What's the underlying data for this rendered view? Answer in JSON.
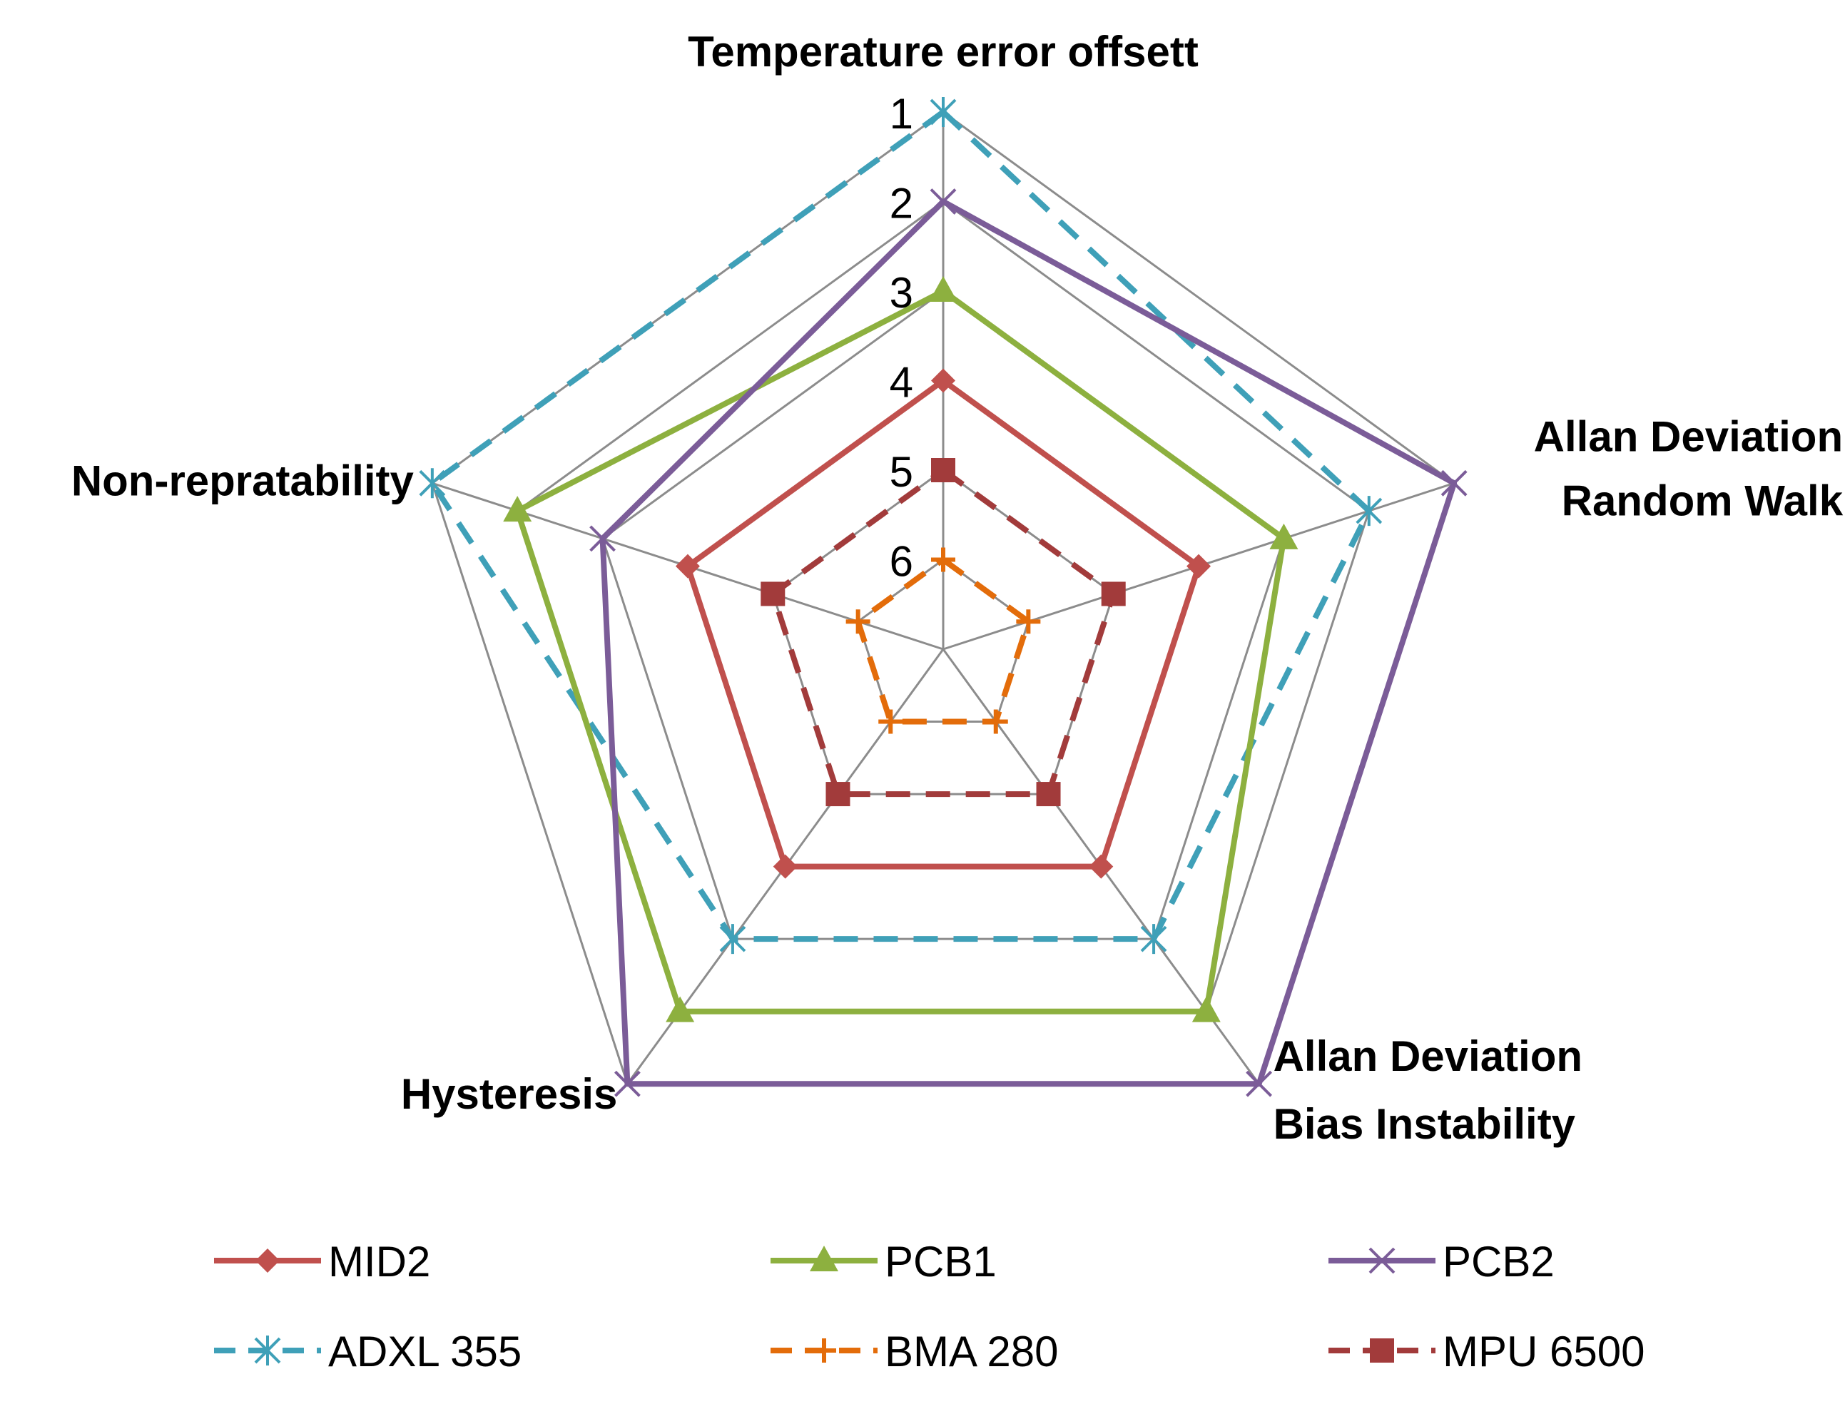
{
  "chart_data": {
    "type": "radar",
    "title": "",
    "axes": [
      "Temperature error offsett",
      "Allan Deviation Random Walk",
      "Allan Deviation Bias Instability",
      "Hysteresis",
      "Non-repratability"
    ],
    "axis_title_lines": [
      [
        "Temperature error offsett"
      ],
      [
        "Allan Deviation",
        "Random Walk"
      ],
      [
        "Allan Deviation",
        "Bias Instability"
      ],
      [
        "Hysteresis"
      ],
      [
        "Non-repratability"
      ]
    ],
    "scale": {
      "min": 1,
      "max": 7,
      "reversed": true,
      "ticks": [
        "1",
        "2",
        "3",
        "4",
        "5",
        "6"
      ]
    },
    "series": [
      {
        "name": "MID2",
        "color": "#C0504D",
        "dash": "solid",
        "marker": "diamond",
        "values": [
          4,
          4,
          4,
          4,
          4
        ]
      },
      {
        "name": "PCB1",
        "color": "#8DB03F",
        "dash": "solid",
        "marker": "triangle",
        "values": [
          3,
          3,
          2,
          2,
          2
        ]
      },
      {
        "name": "PCB2",
        "color": "#7B5C98",
        "dash": "solid",
        "marker": "x",
        "values": [
          2,
          1,
          1,
          1,
          3
        ]
      },
      {
        "name": "ADXL 355",
        "color": "#3FA0B8",
        "dash": "dashed",
        "marker": "star",
        "values": [
          1,
          2,
          3,
          3,
          1
        ]
      },
      {
        "name": "BMA 280",
        "color": "#E36C0A",
        "dash": "dashed",
        "marker": "plus",
        "values": [
          6,
          6,
          6,
          6,
          6
        ]
      },
      {
        "name": "MPU 6500",
        "color": "#A23B3B",
        "dash": "dashed",
        "marker": "square",
        "values": [
          5,
          5,
          5,
          5,
          5
        ]
      }
    ],
    "legend": {
      "position": "bottom",
      "rows": [
        [
          "MID2",
          "PCB1",
          "PCB2"
        ],
        [
          "ADXL 355",
          "BMA 280",
          "MPU 6500"
        ]
      ]
    }
  }
}
